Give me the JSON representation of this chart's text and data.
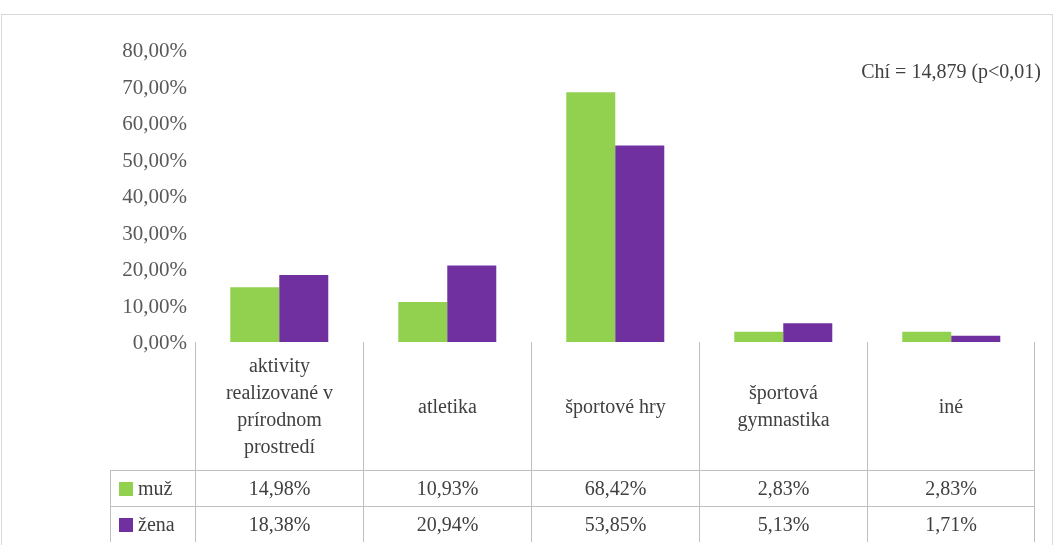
{
  "chart_data": {
    "type": "bar",
    "categories": [
      "aktivity realizované v prírodnom prostredí",
      "atletika",
      "športové hry",
      "športová gymnastika",
      "iné"
    ],
    "series": [
      {
        "name": "muž",
        "color": "#92d050",
        "values": [
          14.98,
          10.93,
          68.42,
          2.83,
          2.83
        ],
        "value_labels": [
          "14,98%",
          "10,93%",
          "68,42%",
          "2,83%",
          "2,83%"
        ]
      },
      {
        "name": "žena",
        "color": "#7030a0",
        "values": [
          18.38,
          20.94,
          53.85,
          5.13,
          1.71
        ],
        "value_labels": [
          "18,38%",
          "20,94%",
          "53,85%",
          "5,13%",
          "1,71%"
        ]
      }
    ],
    "ylim": [
      0,
      80
    ],
    "yticks": [
      {
        "value": 0,
        "label": "0,00%"
      },
      {
        "value": 10,
        "label": "10,00%"
      },
      {
        "value": 20,
        "label": "20,00%"
      },
      {
        "value": 30,
        "label": "30,00%"
      },
      {
        "value": 40,
        "label": "40,00%"
      },
      {
        "value": 50,
        "label": "50,00%"
      },
      {
        "value": 60,
        "label": "60,00%"
      },
      {
        "value": 70,
        "label": "70,00%"
      },
      {
        "value": 80,
        "label": "80,00%"
      }
    ],
    "annotations": [
      "Chí = 14,879 (p<0,01)"
    ],
    "legend": "bottom left",
    "grid": false
  }
}
